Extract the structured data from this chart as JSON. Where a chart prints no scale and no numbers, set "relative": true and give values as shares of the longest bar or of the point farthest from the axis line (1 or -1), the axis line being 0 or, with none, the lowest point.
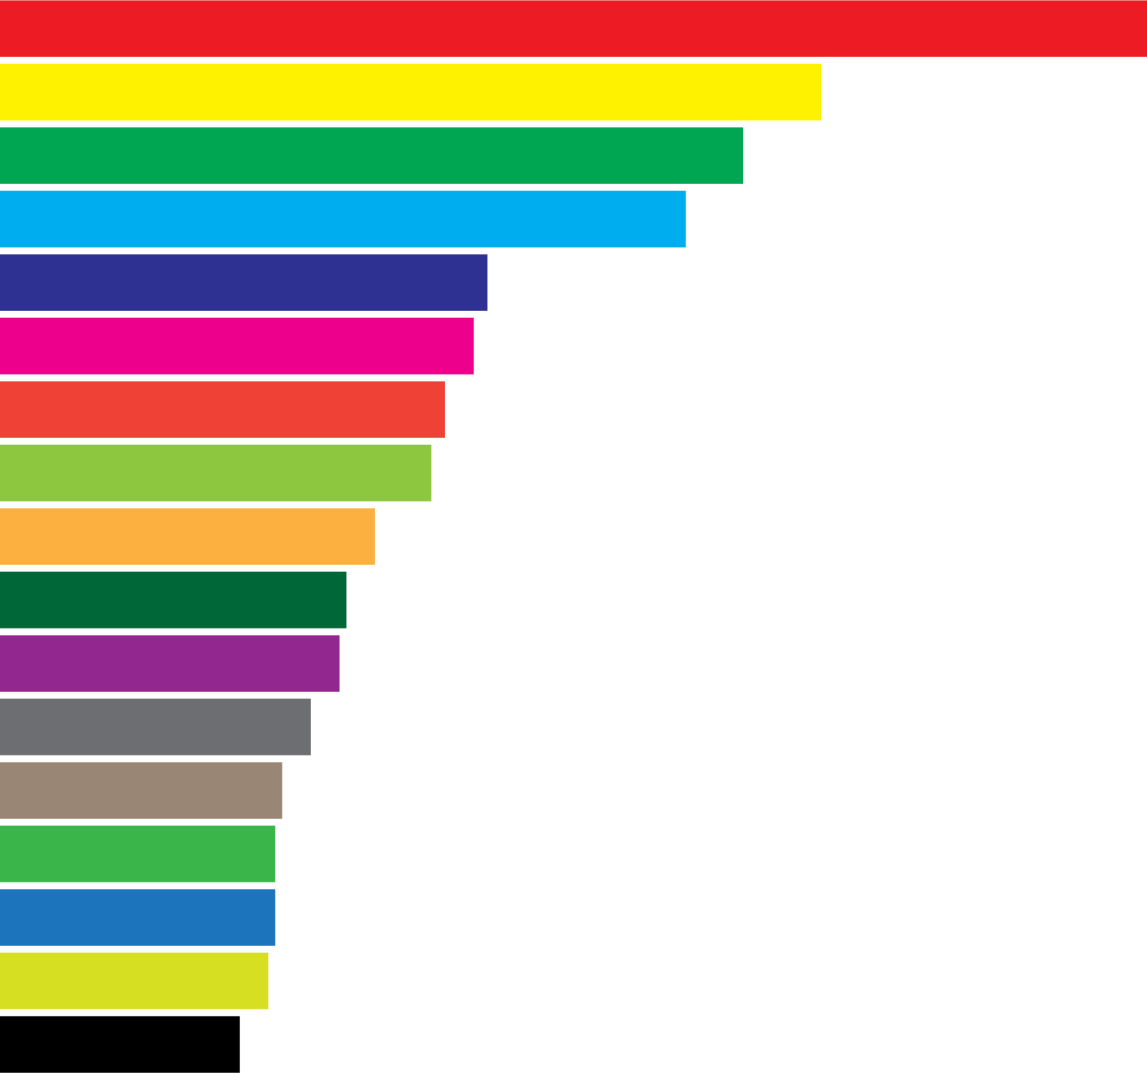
{
  "chart_data": {
    "type": "bar",
    "orientation": "horizontal",
    "relative": true,
    "categories": [
      null,
      null,
      null,
      null,
      null,
      null,
      null,
      null,
      null,
      null,
      null,
      null,
      null,
      null,
      null,
      null,
      null
    ],
    "values": [
      1,
      0.716,
      0.648,
      0.598,
      0.425,
      0.413,
      0.388,
      0.376,
      0.327,
      0.302,
      0.296,
      0.271,
      0.246,
      0.24,
      0.24,
      0.234,
      0.209
    ],
    "colors": [
      "#ed1c24",
      "#fff200",
      "#00a651",
      "#00aeef",
      "#2e3192",
      "#ec008c",
      "#ef4136",
      "#8dc63f",
      "#fbb040",
      "#006838",
      "#92278f",
      "#6d6e71",
      "#998675",
      "#39b54a",
      "#1c75bc",
      "#d7df23",
      "#000000"
    ]
  }
}
